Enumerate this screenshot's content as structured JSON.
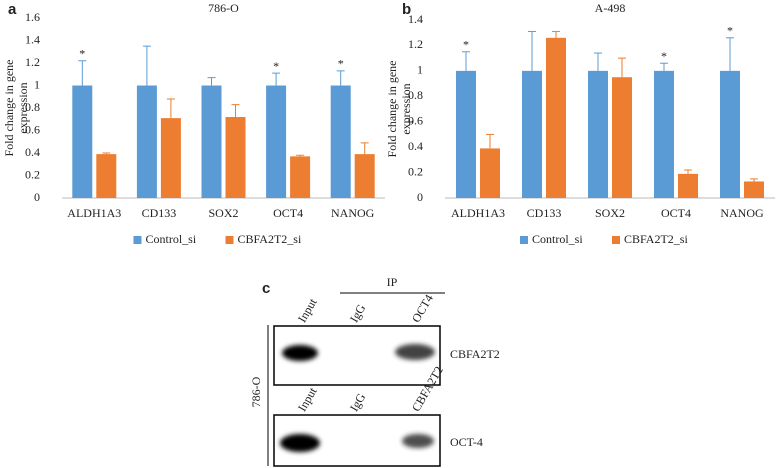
{
  "chart_data": [
    {
      "type": "bar",
      "panel_label": "a",
      "title": "786-O",
      "ylabel": [
        "Fold change in gene",
        "expression"
      ],
      "categories": [
        "ALDH1A3",
        "CD133",
        "SOX2",
        "OCT4",
        "NANOG"
      ],
      "significance": [
        "*",
        null,
        null,
        "*",
        "*"
      ],
      "series": [
        {
          "name": "Control_si",
          "color": "#5b9bd5",
          "values": [
            1,
            1,
            1,
            1,
            1
          ],
          "errors": [
            0.22,
            0.35,
            0.07,
            0.11,
            0.13
          ]
        },
        {
          "name": "CBFA2T2_si",
          "color": "#ed7d31",
          "values": [
            0.39,
            0.71,
            0.72,
            0.37,
            0.39
          ],
          "errors": [
            0.01,
            0.17,
            0.11,
            0.01,
            0.1
          ]
        }
      ],
      "ylim": [
        0,
        1.6
      ],
      "yticks": [
        0,
        0.2,
        0.4,
        0.6,
        0.8,
        1,
        1.2,
        1.4,
        1.6
      ],
      "grid": false,
      "legend": "bottom"
    },
    {
      "type": "bar",
      "panel_label": "b",
      "title": "A-498",
      "ylabel": [
        "Fold change in gene",
        "expression"
      ],
      "categories": [
        "ALDH1A3",
        "CD133",
        "SOX2",
        "OCT4",
        "NANOG"
      ],
      "significance": [
        "*",
        null,
        null,
        "*",
        "*"
      ],
      "series": [
        {
          "name": "Control_si",
          "color": "#5b9bd5",
          "values": [
            1,
            1,
            1,
            1,
            1
          ],
          "errors": [
            0.15,
            0.31,
            0.14,
            0.06,
            0.26
          ]
        },
        {
          "name": "CBFA2T2_si",
          "color": "#ed7d31",
          "values": [
            0.39,
            1.26,
            0.95,
            0.19,
            0.13
          ],
          "errors": [
            0.11,
            0.05,
            0.15,
            0.03,
            0.02
          ]
        }
      ],
      "ylim": [
        0,
        1.4
      ],
      "yticks": [
        0,
        0.2,
        0.4,
        0.6,
        0.8,
        1,
        1.2,
        1.4
      ],
      "grid": false,
      "legend": "bottom"
    }
  ],
  "blot": {
    "panel_label": "c",
    "ip_label": "IP",
    "cell_line": "786-O",
    "panels": [
      {
        "lanes": [
          "Input",
          "IgG",
          "OCT4"
        ],
        "band_label": "CBFA2T2"
      },
      {
        "lanes": [
          "Input",
          "IgG",
          "CBFA2T2"
        ],
        "band_label": "OCT-4"
      }
    ]
  }
}
